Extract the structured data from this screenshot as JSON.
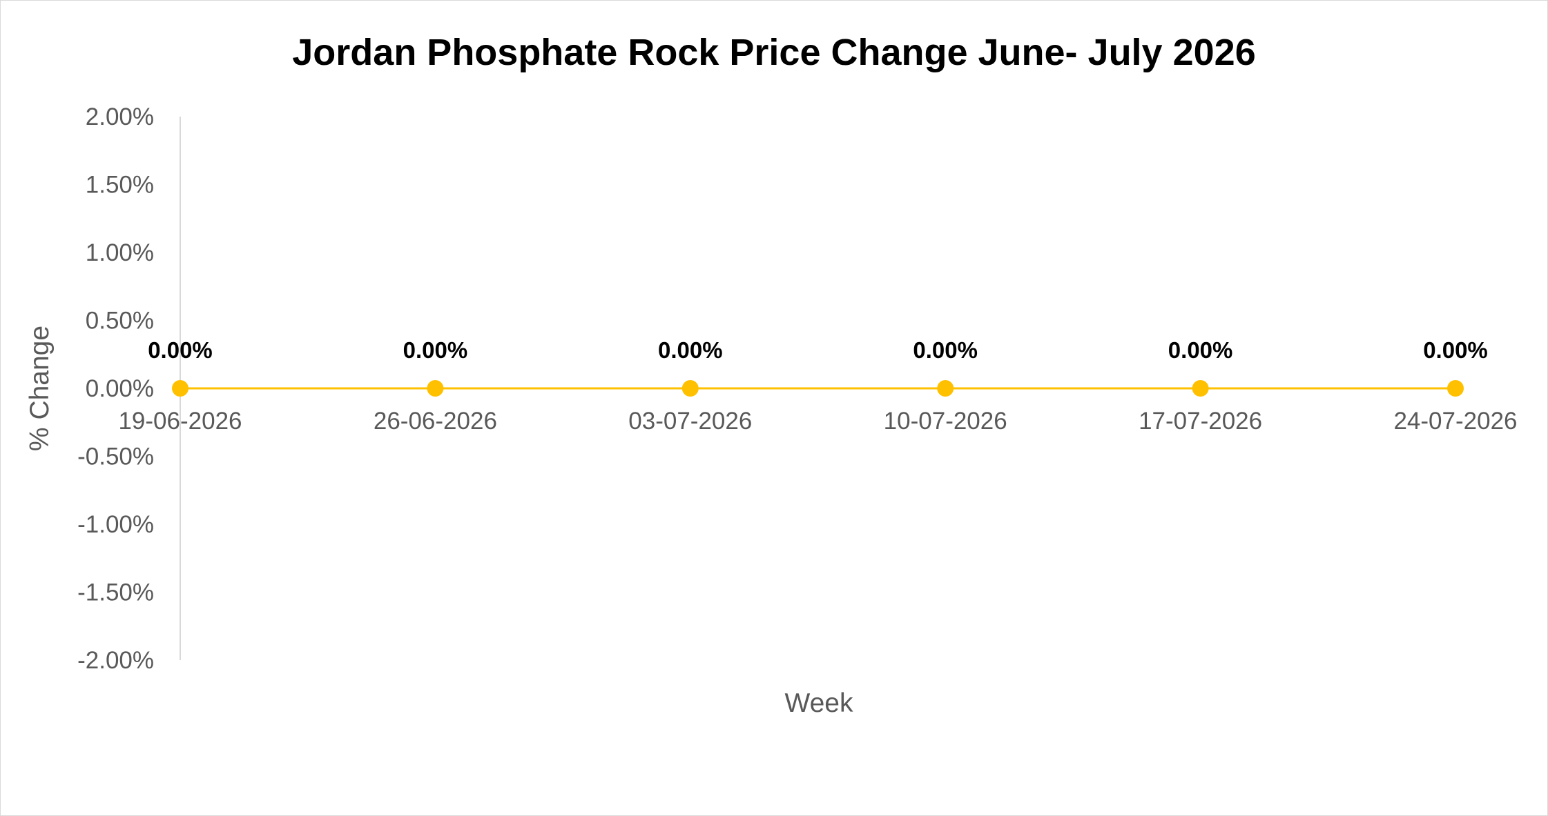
{
  "chart_data": {
    "type": "line",
    "title": "Jordan Phosphate Rock Price Change June- July  2026",
    "xlabel": "Week",
    "ylabel": "% Change",
    "categories": [
      "19-06-2026",
      "26-06-2026",
      "03-07-2026",
      "10-07-2026",
      "17-07-2026",
      "24-07-2026"
    ],
    "series": [
      {
        "values": [
          0.0,
          0.0,
          0.0,
          0.0,
          0.0,
          0.0
        ],
        "data_labels": [
          "0.00%",
          "0.00%",
          "0.00%",
          "0.00%",
          "0.00%",
          "0.00%"
        ],
        "color": "#FFC000"
      }
    ],
    "y_ticks": [
      2.0,
      1.5,
      1.0,
      0.5,
      0.0,
      -0.5,
      -1.0,
      -1.5,
      -2.0
    ],
    "y_tick_labels": [
      "2.00%",
      "1.50%",
      "1.00%",
      "0.50%",
      "0.00%",
      "-0.50%",
      "-1.00%",
      "-1.50%",
      "-2.00%"
    ],
    "ylim": [
      -2.0,
      2.0
    ],
    "grid": false,
    "legend": "none",
    "axis_color": "#d9d9d9"
  }
}
